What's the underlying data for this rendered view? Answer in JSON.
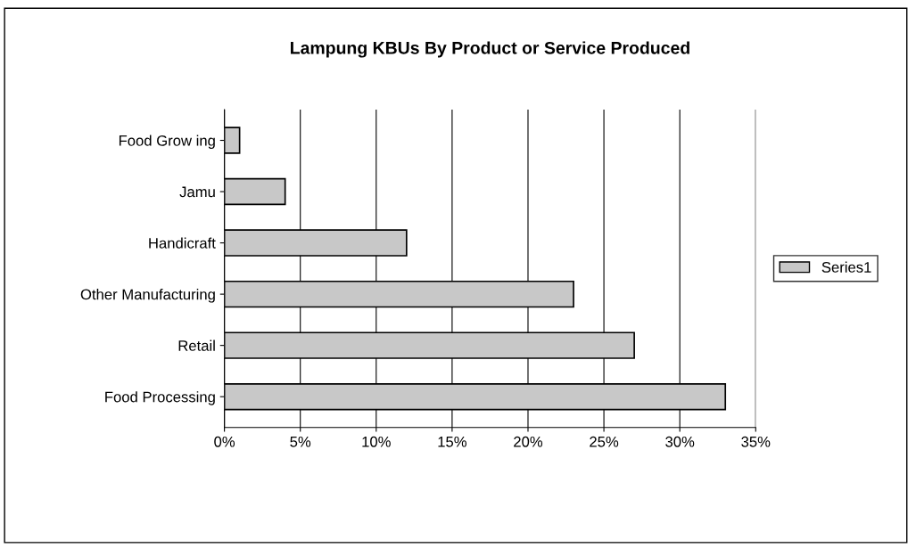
{
  "chart_data": {
    "type": "bar",
    "orientation": "horizontal",
    "title": "Lampung KBUs By Product or Service Produced",
    "categories": [
      "Food Grow ing",
      "Jamu",
      "Handicraft",
      "Other Manufacturing",
      "Retail",
      "Food Processing"
    ],
    "series": [
      {
        "name": "Series1",
        "color": "#c8c8c8",
        "values": [
          0.01,
          0.04,
          0.12,
          0.23,
          0.27,
          0.33
        ]
      }
    ],
    "xlim": [
      0,
      0.35
    ],
    "xticks": [
      {
        "value": 0,
        "label": "0%"
      },
      {
        "value": 0.05,
        "label": "5%"
      },
      {
        "value": 0.1,
        "label": "10%"
      },
      {
        "value": 0.15,
        "label": "15%"
      },
      {
        "value": 0.2,
        "label": "20%"
      },
      {
        "value": 0.25,
        "label": "25%"
      },
      {
        "value": 0.3,
        "label": "30%"
      },
      {
        "value": 0.35,
        "label": "35%"
      }
    ],
    "grid": "x",
    "legend": "right"
  }
}
